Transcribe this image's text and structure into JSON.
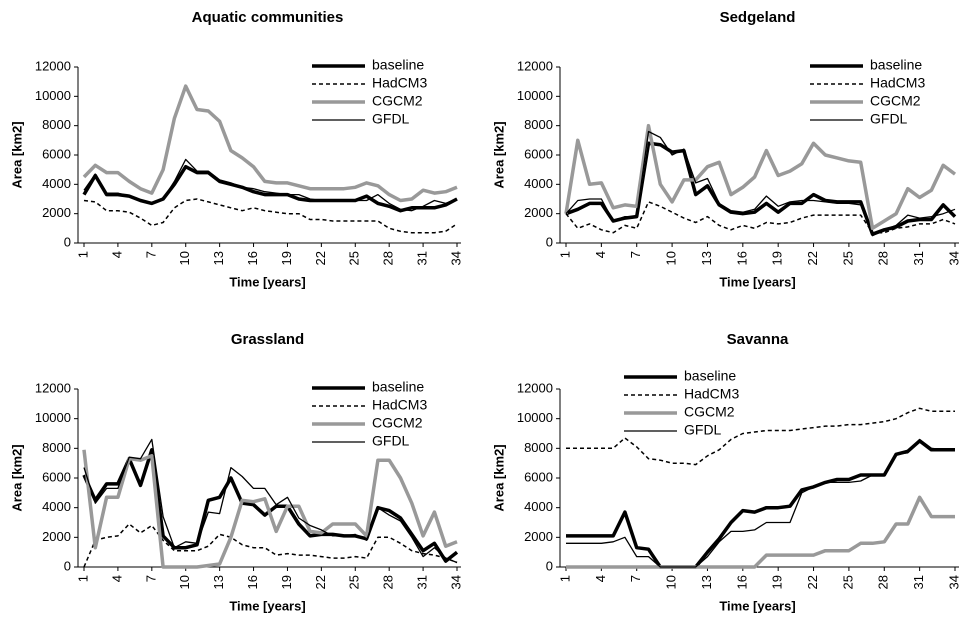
{
  "chart_data": [
    {
      "type": "line",
      "title": "Aquatic communities",
      "x_label": "Time [years]",
      "y_label": "Area [km2]",
      "legend": "upper right",
      "x": [
        1,
        2,
        3,
        4,
        5,
        6,
        7,
        8,
        9,
        10,
        11,
        12,
        13,
        14,
        15,
        16,
        17,
        18,
        19,
        20,
        21,
        22,
        23,
        24,
        25,
        26,
        27,
        28,
        29,
        30,
        31,
        32,
        33,
        34
      ],
      "xlim": [
        1,
        34
      ],
      "xticks": [
        1,
        4,
        7,
        10,
        13,
        16,
        19,
        22,
        25,
        28,
        31,
        34
      ],
      "ylim": [
        0,
        12000
      ],
      "yticks": [
        0,
        2000,
        4000,
        6000,
        8000,
        10000,
        12000
      ],
      "series": [
        {
          "name": "baseline",
          "color": "#000000",
          "linestyle": "solid",
          "values": [
            3300,
            4600,
            3300,
            3300,
            3200,
            2900,
            2700,
            3000,
            4000,
            5200,
            4800,
            4800,
            4200,
            4000,
            3800,
            3500,
            3300,
            3300,
            3300,
            3000,
            2900,
            2900,
            2900,
            2900,
            2900,
            3200,
            2700,
            2500,
            2200,
            2400,
            2400,
            2400,
            2600,
            3000
          ]
        },
        {
          "name": "HadCM3",
          "color": "#000000",
          "linestyle": "dashed",
          "values": [
            2900,
            2800,
            2200,
            2200,
            2100,
            1700,
            1200,
            1400,
            2400,
            2900,
            3000,
            2800,
            2600,
            2400,
            2200,
            2400,
            2200,
            2100,
            2000,
            2000,
            1600,
            1600,
            1500,
            1500,
            1500,
            1500,
            1500,
            1000,
            800,
            700,
            700,
            700,
            800,
            1300
          ]
        },
        {
          "name": "CGCM2",
          "color": "#999999",
          "linestyle": "solid",
          "values": [
            4500,
            5300,
            4800,
            4800,
            4200,
            3700,
            3400,
            5000,
            8500,
            10700,
            9100,
            9000,
            8300,
            6300,
            5800,
            5200,
            4200,
            4100,
            4100,
            3900,
            3700,
            3700,
            3700,
            3700,
            3800,
            4100,
            3900,
            3300,
            2900,
            3000,
            3600,
            3400,
            3500,
            3800
          ]
        },
        {
          "name": "GFDL",
          "color": "#000000",
          "linestyle": "solid",
          "values": [
            3600,
            4700,
            3400,
            3400,
            3200,
            2900,
            2700,
            3000,
            4200,
            5700,
            4900,
            4900,
            4300,
            4100,
            3800,
            3700,
            3500,
            3400,
            3300,
            3300,
            3000,
            2900,
            2900,
            2900,
            2900,
            2900,
            3300,
            2700,
            2300,
            2200,
            2500,
            2900,
            2700,
            3000
          ]
        }
      ]
    },
    {
      "type": "line",
      "title": "Sedgeland",
      "x_label": "Time [years]",
      "y_label": "Area [km2]",
      "legend": "upper right",
      "x": [
        1,
        2,
        3,
        4,
        5,
        6,
        7,
        8,
        9,
        10,
        11,
        12,
        13,
        14,
        15,
        16,
        17,
        18,
        19,
        20,
        21,
        22,
        23,
        24,
        25,
        26,
        27,
        28,
        29,
        30,
        31,
        32,
        33,
        34
      ],
      "xlim": [
        1,
        34
      ],
      "xticks": [
        1,
        4,
        7,
        10,
        13,
        16,
        19,
        22,
        25,
        28,
        31,
        34
      ],
      "ylim": [
        0,
        12000
      ],
      "yticks": [
        0,
        2000,
        4000,
        6000,
        8000,
        10000,
        12000
      ],
      "series": [
        {
          "name": "baseline",
          "color": "#000000",
          "linestyle": "solid",
          "values": [
            2000,
            2300,
            2700,
            2700,
            1500,
            1700,
            1800,
            6800,
            6700,
            6200,
            6300,
            3300,
            3900,
            2600,
            2100,
            2000,
            2100,
            2700,
            2100,
            2700,
            2700,
            3300,
            2900,
            2800,
            2800,
            2800,
            600,
            900,
            1100,
            1500,
            1600,
            1600,
            2600,
            1800
          ]
        },
        {
          "name": "HadCM3",
          "color": "#000000",
          "linestyle": "dashed",
          "values": [
            2000,
            1000,
            1300,
            900,
            700,
            1200,
            1000,
            2800,
            2500,
            2100,
            1700,
            1400,
            1800,
            1200,
            900,
            1200,
            1000,
            1400,
            1300,
            1400,
            1700,
            1900,
            1900,
            1900,
            1900,
            1900,
            700,
            700,
            1000,
            1100,
            1300,
            1300,
            1600,
            1300
          ]
        },
        {
          "name": "CGCM2",
          "color": "#999999",
          "linestyle": "solid",
          "values": [
            2000,
            7000,
            4000,
            4100,
            2400,
            2600,
            2500,
            8000,
            4000,
            2800,
            4300,
            4300,
            5200,
            5500,
            3300,
            3800,
            4500,
            6300,
            4600,
            4900,
            5400,
            6800,
            6000,
            5800,
            5600,
            5500,
            1000,
            1500,
            2000,
            3700,
            3100,
            3600,
            5300,
            4700
          ]
        },
        {
          "name": "GFDL",
          "color": "#000000",
          "linestyle": "solid",
          "values": [
            2000,
            2900,
            3000,
            3000,
            1500,
            1800,
            1800,
            7600,
            7200,
            6000,
            6400,
            4100,
            4400,
            2700,
            2200,
            2100,
            2300,
            3200,
            2500,
            2800,
            2900,
            2900,
            2800,
            2700,
            2700,
            2600,
            500,
            900,
            1200,
            1900,
            1700,
            1800,
            2000,
            2300
          ]
        }
      ]
    },
    {
      "type": "line",
      "title": "Grassland",
      "x_label": "Time [years]",
      "y_label": "Area [km2]",
      "legend": "upper right",
      "x": [
        1,
        2,
        3,
        4,
        5,
        6,
        7,
        8,
        9,
        10,
        11,
        12,
        13,
        14,
        15,
        16,
        17,
        18,
        19,
        20,
        21,
        22,
        23,
        24,
        25,
        26,
        27,
        28,
        29,
        30,
        31,
        32,
        33,
        34
      ],
      "xlim": [
        1,
        34
      ],
      "xticks": [
        1,
        4,
        7,
        10,
        13,
        16,
        19,
        22,
        25,
        28,
        31,
        34
      ],
      "ylim": [
        0,
        12000
      ],
      "yticks": [
        0,
        2000,
        4000,
        6000,
        8000,
        10000,
        12000
      ],
      "series": [
        {
          "name": "baseline",
          "color": "#000000",
          "linestyle": "solid",
          "values": [
            6200,
            4500,
            5600,
            5600,
            7300,
            5500,
            7900,
            2100,
            1300,
            1300,
            1500,
            4500,
            4700,
            6000,
            4300,
            4200,
            3500,
            4100,
            4100,
            2900,
            2100,
            2200,
            2200,
            2100,
            2100,
            1900,
            4000,
            3800,
            3300,
            2200,
            1100,
            1600,
            400,
            1000
          ]
        },
        {
          "name": "HadCM3",
          "color": "#000000",
          "linestyle": "dashed",
          "values": [
            0,
            1800,
            2000,
            2100,
            2900,
            2300,
            2800,
            1800,
            1100,
            1100,
            1100,
            1400,
            2200,
            2000,
            1500,
            1300,
            1300,
            800,
            900,
            800,
            800,
            700,
            600,
            600,
            700,
            600,
            2000,
            2000,
            1600,
            1100,
            900,
            800,
            600,
            300
          ]
        },
        {
          "name": "CGCM2",
          "color": "#999999",
          "linestyle": "solid",
          "values": [
            7900,
            1300,
            4700,
            4700,
            7300,
            7200,
            7500,
            0,
            0,
            0,
            0,
            100,
            200,
            2000,
            4500,
            4400,
            4600,
            2400,
            4100,
            4100,
            2400,
            2300,
            2900,
            2900,
            2900,
            2100,
            7200,
            7200,
            6000,
            4300,
            2100,
            3700,
            1400,
            1700
          ]
        },
        {
          "name": "GFDL",
          "color": "#000000",
          "linestyle": "solid",
          "values": [
            6700,
            4300,
            5300,
            5300,
            7400,
            7300,
            8600,
            3400,
            1300,
            1700,
            1600,
            3700,
            3600,
            6700,
            6100,
            5300,
            5300,
            4200,
            4700,
            3300,
            2800,
            2500,
            2100,
            2100,
            2200,
            1800,
            4000,
            3500,
            3100,
            2000,
            700,
            1300,
            600,
            300
          ]
        }
      ]
    },
    {
      "type": "line",
      "title": "Savanna",
      "x_label": "Time [years]",
      "y_label": "Area [km2]",
      "legend": "upper left",
      "x": [
        1,
        2,
        3,
        4,
        5,
        6,
        7,
        8,
        9,
        10,
        11,
        12,
        13,
        14,
        15,
        16,
        17,
        18,
        19,
        20,
        21,
        22,
        23,
        24,
        25,
        26,
        27,
        28,
        29,
        30,
        31,
        32,
        33,
        34
      ],
      "xlim": [
        1,
        34
      ],
      "xticks": [
        1,
        4,
        7,
        10,
        13,
        16,
        19,
        22,
        25,
        28,
        31,
        34
      ],
      "ylim": [
        0,
        12000
      ],
      "yticks": [
        0,
        2000,
        4000,
        6000,
        8000,
        10000,
        12000
      ],
      "series": [
        {
          "name": "baseline",
          "color": "#000000",
          "linestyle": "solid",
          "values": [
            2100,
            2100,
            2100,
            2100,
            2100,
            3700,
            1300,
            1200,
            0,
            0,
            0,
            0,
            1000,
            1900,
            3000,
            3800,
            3700,
            4000,
            4000,
            4100,
            5200,
            5400,
            5700,
            5900,
            5900,
            6200,
            6200,
            6200,
            7600,
            7800,
            8500,
            7900,
            7900,
            7900
          ]
        },
        {
          "name": "HadCM3",
          "color": "#000000",
          "linestyle": "dashed",
          "values": [
            8000,
            8000,
            8000,
            8000,
            8000,
            8700,
            8100,
            7300,
            7200,
            7000,
            7000,
            6900,
            7500,
            7900,
            8600,
            9000,
            9100,
            9200,
            9200,
            9200,
            9300,
            9400,
            9500,
            9500,
            9600,
            9600,
            9700,
            9800,
            10000,
            10400,
            10700,
            10500,
            10500,
            10500
          ]
        },
        {
          "name": "CGCM2",
          "color": "#999999",
          "linestyle": "solid",
          "values": [
            0,
            0,
            0,
            0,
            0,
            0,
            0,
            0,
            0,
            0,
            0,
            0,
            0,
            0,
            0,
            0,
            0,
            800,
            800,
            800,
            800,
            800,
            1100,
            1100,
            1100,
            1600,
            1600,
            1700,
            2900,
            2900,
            4700,
            3400,
            3400,
            3400
          ]
        },
        {
          "name": "GFDL",
          "color": "#000000",
          "linestyle": "solid",
          "values": [
            1600,
            1600,
            1600,
            1600,
            1700,
            2000,
            700,
            700,
            0,
            0,
            0,
            0,
            700,
            1700,
            2400,
            2400,
            2500,
            3000,
            3000,
            3000,
            5000,
            5400,
            5700,
            5700,
            5700,
            5800,
            6200,
            6200,
            7600,
            7700,
            8600,
            8000,
            7900,
            7900
          ]
        }
      ]
    }
  ]
}
